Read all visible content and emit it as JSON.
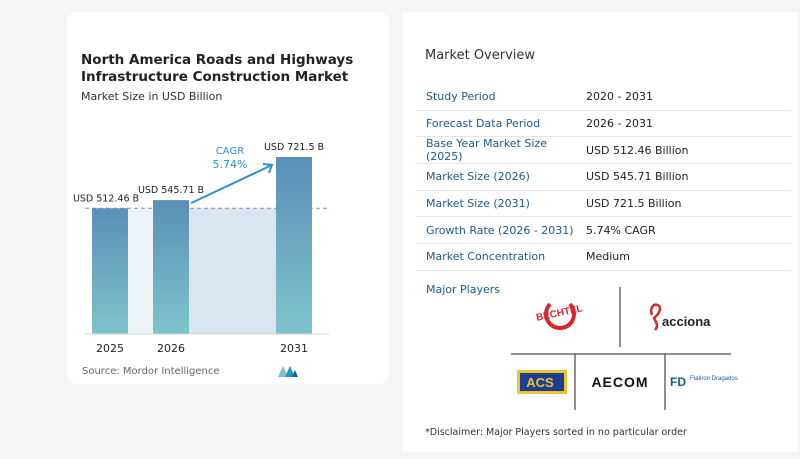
{
  "chart_data": {
    "type": "bar",
    "title": "North America Roads and Highways Infrastructure Construction Market",
    "subtitle": "Market Size in USD Billion",
    "categories": [
      "2025",
      "2026",
      "2031"
    ],
    "values": [
      512.46,
      545.71,
      721.5
    ],
    "value_labels": [
      "USD 512.46 B",
      "USD 545.71 B",
      "USD 721.5 B"
    ],
    "cagr_label": "CAGR",
    "cagr_value": "5.74%",
    "source": "Source:  Mordor Intelligence",
    "colors": {
      "bar_top": "#5b8fb6",
      "bar_bottom": "#7ec4cc",
      "band": "#d9e6ef",
      "arrow": "#2f8fc9",
      "cagr_text": "#2f8fc9"
    }
  },
  "overview": {
    "title": "Market Overview",
    "rows": [
      {
        "key": "Study Period",
        "value": "2020 - 2031"
      },
      {
        "key": "Forecast Data Period",
        "value": "2026 - 2031"
      },
      {
        "key": "Base Year Market Size (2025)",
        "value": "USD 512.46 Billion"
      },
      {
        "key": "Market Size (2026)",
        "value": "USD 545.71 Billion"
      },
      {
        "key": "Market Size (2031)",
        "value": "USD 721.5 Billion"
      },
      {
        "key": "Growth Rate (2026 - 2031)",
        "value": "5.74% CAGR"
      },
      {
        "key": "Market Concentration",
        "value": "Medium"
      }
    ],
    "players_label": "Major Players",
    "players": [
      {
        "name": "BECHTEL",
        "icon": "bechtel-logo"
      },
      {
        "name": "acciona",
        "icon": "acciona-logo"
      },
      {
        "name": "ACS",
        "icon": "acs-logo"
      },
      {
        "name": "AECOM",
        "icon": "aecom-logo"
      },
      {
        "name": "Flatiron Dragados",
        "icon": "flatiron-dragados-logo"
      }
    ],
    "disclaimer": "*Disclaimer: Major Players sorted in no particular order"
  }
}
